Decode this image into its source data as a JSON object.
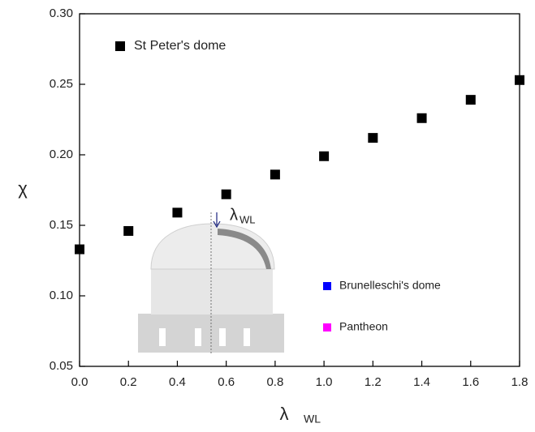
{
  "chart_data": {
    "type": "scatter",
    "xlabel": "λ",
    "xlabel_sub": "WL",
    "ylabel": "χ",
    "x": [
      0.0,
      0.2,
      0.4,
      0.6,
      0.8,
      1.0,
      1.2,
      1.4,
      1.6,
      1.8
    ],
    "series": [
      {
        "name": "St Peter's dome",
        "color": "#000000",
        "values": [
          0.133,
          0.146,
          0.159,
          0.172,
          0.186,
          0.199,
          0.212,
          0.226,
          0.239,
          0.253
        ]
      },
      {
        "name": "Brunelleschi's dome",
        "color": "#0000ff",
        "values": [
          null,
          null,
          null,
          null,
          null,
          null,
          null,
          null,
          null,
          null
        ]
      },
      {
        "name": "Pantheon",
        "color": "#ff00ff",
        "values": [
          null,
          null,
          null,
          null,
          null,
          null,
          null,
          null,
          null,
          null
        ]
      }
    ],
    "xlim": [
      0,
      1.8
    ],
    "xticks": [
      {
        "value": 0,
        "label": "0.0"
      },
      {
        "value": 0.2,
        "label": "0.2"
      },
      {
        "value": 0.4,
        "label": "0.4"
      },
      {
        "value": 0.6,
        "label": "0.6"
      },
      {
        "value": 0.8,
        "label": "0.8"
      },
      {
        "value": 1,
        "label": "1.0"
      },
      {
        "value": 1.2,
        "label": "1.2"
      },
      {
        "value": 1.4,
        "label": "1.4"
      },
      {
        "value": 1.6,
        "label": "1.6"
      },
      {
        "value": 1.8,
        "label": "1.8"
      }
    ],
    "ylim": [
      0.05,
      0.3
    ],
    "yticks": [
      {
        "value": 0.05,
        "label": "0.05"
      },
      {
        "value": 0.1,
        "label": "0.10"
      },
      {
        "value": 0.15,
        "label": "0.15"
      },
      {
        "value": 0.2,
        "label": "0.20"
      },
      {
        "value": 0.25,
        "label": "0.25"
      },
      {
        "value": 0.3,
        "label": "0.30"
      }
    ],
    "annotation": "λ",
    "annotation_sub": "WL"
  }
}
